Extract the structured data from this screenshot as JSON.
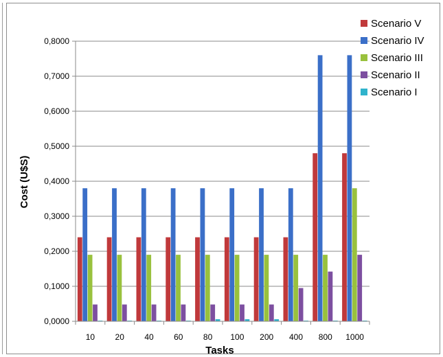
{
  "chart_data": {
    "type": "bar",
    "xlabel": "Tasks",
    "ylabel": "Cost (U$S)",
    "ylim": [
      0,
      0.8
    ],
    "y_ticks": [
      "0,0000",
      "0,1000",
      "0,2000",
      "0,3000",
      "0,4000",
      "0,5000",
      "0,6000",
      "0,7000",
      "0,8000"
    ],
    "categories": [
      "10",
      "20",
      "40",
      "60",
      "80",
      "100",
      "200",
      "400",
      "800",
      "1000"
    ],
    "grid": true,
    "legend_position": "top-right",
    "series": [
      {
        "name": "Scenario V",
        "color": "#c0393b",
        "values": [
          0.24,
          0.24,
          0.24,
          0.24,
          0.24,
          0.24,
          0.24,
          0.24,
          0.48,
          0.48
        ]
      },
      {
        "name": "Scenario IV",
        "color": "#3b6fc8",
        "values": [
          0.38,
          0.38,
          0.38,
          0.38,
          0.38,
          0.38,
          0.38,
          0.38,
          0.76,
          0.76
        ]
      },
      {
        "name": "Scenario III",
        "color": "#99c13d",
        "values": [
          0.19,
          0.19,
          0.19,
          0.19,
          0.19,
          0.19,
          0.19,
          0.19,
          0.19,
          0.38
        ]
      },
      {
        "name": "Scenario II",
        "color": "#7d4fa0",
        "values": [
          0.048,
          0.048,
          0.048,
          0.048,
          0.048,
          0.048,
          0.048,
          0.095,
          0.142,
          0.19
        ]
      },
      {
        "name": "Scenario I",
        "color": "#2fb3cc",
        "values": [
          0.002,
          0.002,
          0.002,
          0.002,
          0.006,
          0.006,
          0.006,
          0.002,
          0.002,
          0.002
        ]
      }
    ]
  }
}
